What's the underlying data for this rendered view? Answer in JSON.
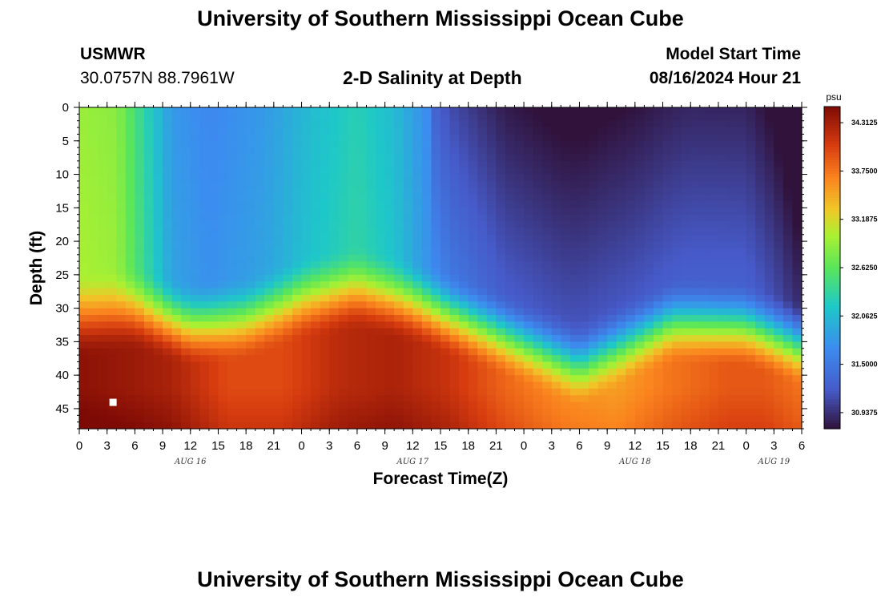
{
  "header": {
    "title": "University of Southern Mississippi Ocean Cube",
    "station": "USMWR",
    "coords": "30.0757N  88.7961W",
    "plot_title": "2-D Salinity at Depth",
    "model_label": "Model Start Time",
    "model_time": "08/16/2024 Hour 21"
  },
  "footer": {
    "title": "University of Southern Mississippi Ocean Cube"
  },
  "chart_data": {
    "type": "heatmap",
    "title": "2-D Salinity at Depth",
    "xlabel": "Forecast Time(Z)",
    "ylabel": "Depth (ft)",
    "x_ticks": [
      "0",
      "3",
      "6",
      "9",
      "12",
      "15",
      "18",
      "21",
      "0",
      "3",
      "6",
      "9",
      "12",
      "15",
      "18",
      "21",
      "0",
      "3",
      "6",
      "9",
      "12",
      "15",
      "18",
      "21",
      "0",
      "3",
      "6"
    ],
    "date_labels": [
      {
        "label": "AUG 16",
        "hour": 12
      },
      {
        "label": "AUG 17",
        "hour": 36
      },
      {
        "label": "AUG 18",
        "hour": 60
      },
      {
        "label": "AUG 19",
        "hour": 75
      }
    ],
    "xlim": [
      0,
      78
    ],
    "y_ticks": [
      0,
      5,
      10,
      15,
      20,
      25,
      30,
      35,
      40,
      45
    ],
    "ylim": [
      0,
      48
    ],
    "colorbar": {
      "unit": "psu",
      "labels": [
        "34.3125",
        "33.7500",
        "33.1875",
        "32.6250",
        "32.0625",
        "31.5000",
        "30.9375"
      ],
      "range": [
        30.75,
        34.5
      ]
    },
    "marker": {
      "hour": 3.6,
      "depth": 44
    }
  }
}
